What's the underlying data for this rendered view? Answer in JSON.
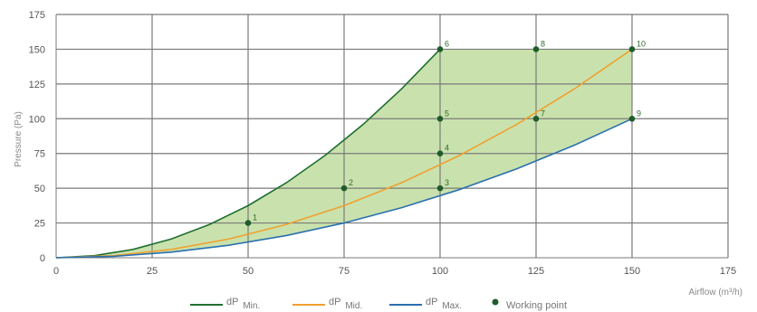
{
  "chart_data": {
    "type": "line",
    "xlabel": "Airflow (m³/h)",
    "ylabel": "Pressure (Pa)",
    "xlim": [
      0,
      175
    ],
    "ylim": [
      0,
      175
    ],
    "x_ticks": [
      "0",
      "25",
      "50",
      "75",
      "100",
      "125",
      "150",
      "175"
    ],
    "y_ticks": [
      "0",
      "25",
      "50",
      "75",
      "100",
      "125",
      "150",
      "175"
    ],
    "grid": true,
    "legend_position": "bottom",
    "series": [
      {
        "name": "dP Min.",
        "label_main": "dP",
        "label_sub": "Min.",
        "color": "#1f6e2f",
        "x": [
          0,
          10,
          20,
          30,
          40,
          50,
          60,
          70,
          80,
          90,
          100
        ],
        "y": [
          0,
          1.5,
          6,
          13.5,
          24,
          37.5,
          54,
          73.5,
          96,
          121.5,
          150
        ]
      },
      {
        "name": "dP Mid.",
        "label_main": "dP",
        "label_sub": "Mid.",
        "color": "#f0a030",
        "x": [
          0,
          15,
          30,
          45,
          60,
          75,
          90,
          105,
          120,
          135,
          150
        ],
        "y": [
          0,
          1.5,
          6,
          13.5,
          24,
          37.5,
          54,
          73.5,
          96,
          121.5,
          150
        ]
      },
      {
        "name": "dP Max.",
        "label_main": "dP",
        "label_sub": "Max.",
        "color": "#2a70b0",
        "x": [
          0,
          15,
          30,
          45,
          60,
          75,
          90,
          105,
          120,
          135,
          150
        ],
        "y": [
          0,
          1,
          4,
          9,
          16,
          25,
          36,
          49,
          64,
          81,
          100
        ]
      }
    ],
    "working_points": {
      "name": "Working point",
      "color": "#1f5c2a",
      "points": [
        {
          "label": "1",
          "x": 50,
          "y": 25
        },
        {
          "label": "2",
          "x": 75,
          "y": 50
        },
        {
          "label": "3",
          "x": 100,
          "y": 50
        },
        {
          "label": "4",
          "x": 100,
          "y": 75
        },
        {
          "label": "5",
          "x": 100,
          "y": 100
        },
        {
          "label": "6",
          "x": 100,
          "y": 150
        },
        {
          "label": "7",
          "x": 125,
          "y": 100
        },
        {
          "label": "8",
          "x": 125,
          "y": 150
        },
        {
          "label": "9",
          "x": 150,
          "y": 100
        },
        {
          "label": "10",
          "x": 150,
          "y": 150
        }
      ]
    },
    "region_color": "#c9e2ad",
    "grid_color": "#7a7a7a"
  }
}
